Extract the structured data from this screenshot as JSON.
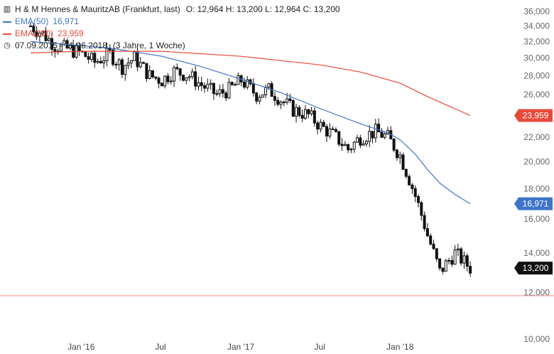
{
  "header": {
    "title": "H & M Hennes & MauritzAB (Frankfurt, last)",
    "ohlc": "O: 12,964  H: 13,200  L: 12,964  C: 13,200",
    "ema50_label": "EMA(50)",
    "ema50_value": "16,971",
    "ema200_label": "EMA(200)",
    "ema200_value": "23,959",
    "date_range": "07.09.2015 - 11.06.2018",
    "period": "(3 Jahre, 1 Woche)"
  },
  "colors": {
    "ema50": "#3f74c9",
    "ema200": "#e84a3a",
    "candle": "#111111",
    "support": "#f6c3c3",
    "last_tag": "#111111"
  },
  "chart_data": {
    "type": "line",
    "title": "H & M Hennes & MauritzAB (Frankfurt, last)",
    "scale": "log",
    "ylim": [
      10,
      36
    ],
    "y_ticks": [
      "36,000",
      "34,000",
      "32,000",
      "30,000",
      "28,000",
      "26,000",
      "24,000",
      "22,000",
      "20,000",
      "18,000",
      "16,000",
      "14,000",
      "12,000",
      "10,000"
    ],
    "y_tick_values": [
      36,
      34,
      32,
      30,
      28,
      26,
      24,
      22,
      20,
      18,
      16,
      14,
      12,
      10
    ],
    "x_ticks": [
      "Jan '16",
      "Jul",
      "Jan '17",
      "Jul",
      "Jan '18"
    ],
    "x_tick_dates": [
      "2016-01-01",
      "2016-07-01",
      "2017-01-01",
      "2017-07-01",
      "2018-01-01"
    ],
    "xlim": [
      "2015-09-07",
      "2018-06-11"
    ],
    "grid": false,
    "series": [
      {
        "name": "H & M Hennes & MauritzAB",
        "type": "close",
        "x": [
          "2015-09-07",
          "2015-10-05",
          "2015-11-02",
          "2015-12-07",
          "2016-01-04",
          "2016-02-01",
          "2016-03-07",
          "2016-04-04",
          "2016-05-02",
          "2016-06-06",
          "2016-07-04",
          "2016-08-01",
          "2016-09-05",
          "2016-10-03",
          "2016-11-07",
          "2016-12-05",
          "2017-01-02",
          "2017-02-06",
          "2017-03-06",
          "2017-04-03",
          "2017-05-01",
          "2017-06-05",
          "2017-07-03",
          "2017-08-07",
          "2017-09-04",
          "2017-10-02",
          "2017-11-06",
          "2017-12-04",
          "2018-01-01",
          "2018-02-05",
          "2018-03-05",
          "2018-04-02",
          "2018-05-07",
          "2018-06-11"
        ],
        "values": [
          34.0,
          33.0,
          31.5,
          31.0,
          30.5,
          29.5,
          30.5,
          29.0,
          30.0,
          28.0,
          27.5,
          28.5,
          28.0,
          27.0,
          26.0,
          26.5,
          27.5,
          26.0,
          26.5,
          25.5,
          24.5,
          24.0,
          23.0,
          22.0,
          21.0,
          22.0,
          22.5,
          22.0,
          20.5,
          17.5,
          15.0,
          13.0,
          14.0,
          13.2
        ]
      },
      {
        "name": "EMA(50)",
        "x": [
          "2015-09-07",
          "2016-03-07",
          "2016-07-04",
          "2016-10-03",
          "2017-01-02",
          "2017-04-03",
          "2017-07-03",
          "2017-10-02",
          "2017-12-04",
          "2018-01-01",
          "2018-02-05",
          "2018-03-05",
          "2018-04-02",
          "2018-05-07",
          "2018-06-11"
        ],
        "values": [
          32.0,
          31.2,
          30.2,
          29.0,
          27.6,
          26.2,
          24.6,
          23.2,
          22.4,
          21.8,
          20.6,
          19.4,
          18.4,
          17.6,
          16.971
        ]
      },
      {
        "name": "EMA(200)",
        "x": [
          "2015-09-07",
          "2016-01-04",
          "2016-07-04",
          "2017-01-02",
          "2017-07-03",
          "2017-10-02",
          "2018-01-01",
          "2018-03-05",
          "2018-06-11"
        ],
        "values": [
          30.6,
          30.8,
          30.8,
          30.2,
          29.2,
          28.4,
          27.2,
          25.8,
          23.959
        ]
      }
    ],
    "last_values": {
      "close": "13,200",
      "ema50": "16,971",
      "ema200": "23,959"
    },
    "support_level": 11.85
  }
}
